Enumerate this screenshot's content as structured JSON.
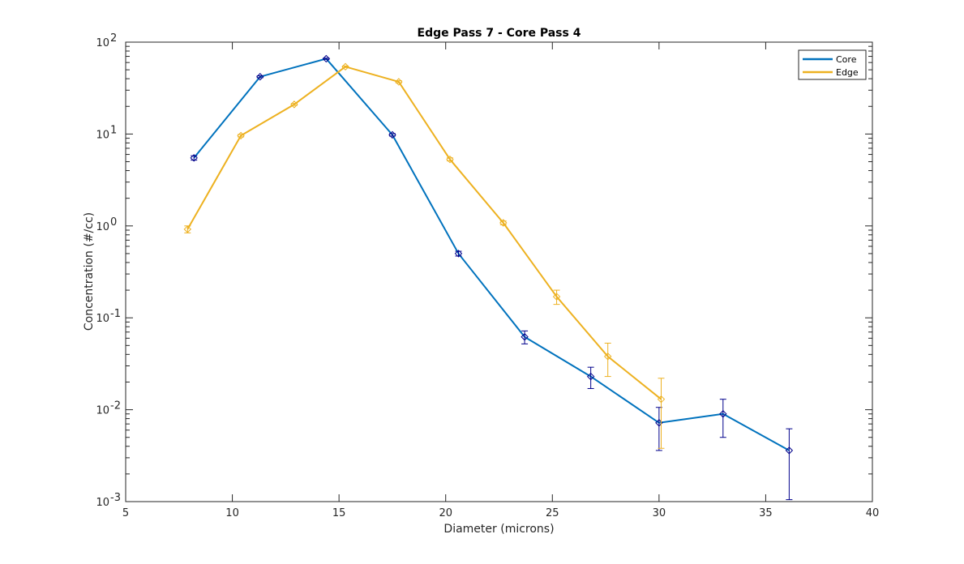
{
  "chart_data": {
    "type": "line",
    "title": "Edge Pass 7 - Core Pass 4",
    "xlabel": "Diameter (microns)",
    "ylabel": "Concentration (#/cc)",
    "xlim": [
      5,
      40
    ],
    "ylim": [
      0.001,
      100
    ],
    "yscale": "log",
    "xticks": [
      "5",
      "10",
      "15",
      "20",
      "25",
      "30",
      "35",
      "40"
    ],
    "yticks": [
      {
        "base": "10",
        "exp": "-3"
      },
      {
        "base": "10",
        "exp": "-2"
      },
      {
        "base": "10",
        "exp": "-1"
      },
      {
        "base": "10",
        "exp": "0"
      },
      {
        "base": "10",
        "exp": "1"
      },
      {
        "base": "10",
        "exp": "2"
      }
    ],
    "grid": false,
    "legend_position": "top-right",
    "series": [
      {
        "name": "Core",
        "color": "#0072BD",
        "errorbar_color": "#00008B",
        "marker": "diamond",
        "points": [
          {
            "x": 8.2,
            "y": 5.5,
            "lo": 5.2,
            "hi": 5.8
          },
          {
            "x": 11.3,
            "y": 42,
            "lo": 41,
            "hi": 43
          },
          {
            "x": 14.4,
            "y": 66,
            "lo": 65,
            "hi": 67
          },
          {
            "x": 17.5,
            "y": 9.8,
            "lo": 9.5,
            "hi": 10.1
          },
          {
            "x": 20.6,
            "y": 0.5,
            "lo": 0.47,
            "hi": 0.53
          },
          {
            "x": 23.7,
            "y": 0.062,
            "lo": 0.052,
            "hi": 0.072
          },
          {
            "x": 26.8,
            "y": 0.023,
            "lo": 0.017,
            "hi": 0.029
          },
          {
            "x": 30.0,
            "y": 0.0072,
            "lo": 0.0036,
            "hi": 0.0106
          },
          {
            "x": 33.0,
            "y": 0.009,
            "lo": 0.005,
            "hi": 0.013
          },
          {
            "x": 36.1,
            "y": 0.0036,
            "lo": 0.00105,
            "hi": 0.0062
          }
        ]
      },
      {
        "name": "Edge",
        "color": "#EDB120",
        "errorbar_color": "#EDB120",
        "marker": "diamond",
        "points": [
          {
            "x": 7.9,
            "y": 0.92,
            "lo": 0.84,
            "hi": 1.0
          },
          {
            "x": 10.4,
            "y": 9.6,
            "lo": 9.3,
            "hi": 9.9
          },
          {
            "x": 12.9,
            "y": 21,
            "lo": 20.5,
            "hi": 21.5
          },
          {
            "x": 15.3,
            "y": 54,
            "lo": 53,
            "hi": 55
          },
          {
            "x": 17.8,
            "y": 37,
            "lo": 36,
            "hi": 38
          },
          {
            "x": 20.2,
            "y": 5.3,
            "lo": 5.1,
            "hi": 5.5
          },
          {
            "x": 22.7,
            "y": 1.08,
            "lo": 1.03,
            "hi": 1.13
          },
          {
            "x": 25.2,
            "y": 0.17,
            "lo": 0.14,
            "hi": 0.2
          },
          {
            "x": 27.6,
            "y": 0.038,
            "lo": 0.023,
            "hi": 0.053
          },
          {
            "x": 30.1,
            "y": 0.013,
            "lo": 0.0038,
            "hi": 0.022
          }
        ]
      }
    ]
  }
}
